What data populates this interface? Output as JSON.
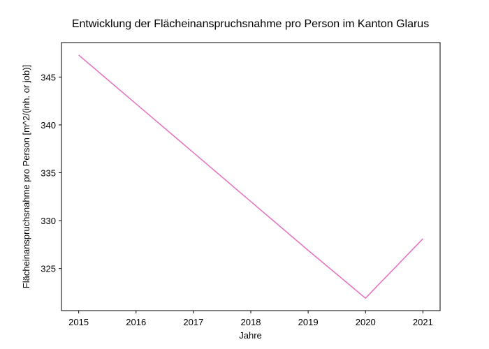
{
  "chart_data": {
    "type": "line",
    "title": "Entwicklung der Flächeinanspruchsnahme pro Person im Kanton Glarus",
    "xlabel": "Jahre",
    "ylabel": "Flächeinanspruchsnahme pro Person [m^2/(inh. or job)]",
    "x": [
      2015,
      2016,
      2017,
      2018,
      2019,
      2020,
      2021
    ],
    "xticks": [
      "2015",
      "2016",
      "2017",
      "2018",
      "2019",
      "2020",
      "2021"
    ],
    "yticks": [
      "325",
      "330",
      "335",
      "340",
      "345"
    ],
    "ytick_values": [
      325,
      330,
      335,
      340,
      345
    ],
    "xlim": [
      2014.7,
      2021.3
    ],
    "ylim": [
      320.6,
      348.6
    ],
    "grid": false,
    "series": [
      {
        "color": "#e377c2",
        "values": [
          347.3,
          342.2,
          337.1,
          332.0,
          326.9,
          321.9,
          328.1
        ]
      }
    ]
  }
}
